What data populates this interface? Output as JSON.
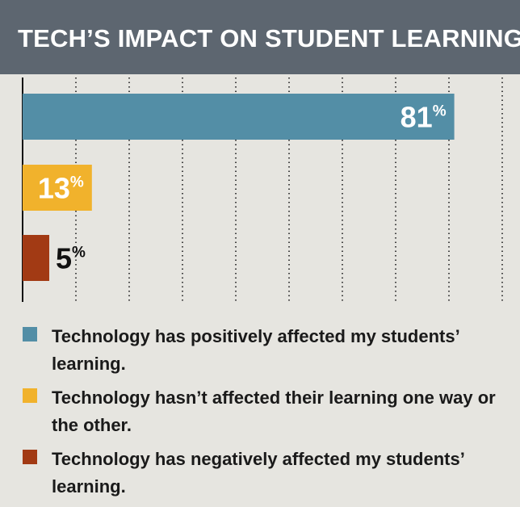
{
  "header": {
    "title": "TECH’S IMPACT ON STUDENT LEARNING",
    "background": "#5d6670"
  },
  "chart_data": {
    "type": "bar",
    "orientation": "horizontal",
    "title": "TECH’S IMPACT ON STUDENT LEARNING",
    "categories": [
      "Technology has positively affected my students’ learning.",
      "Technology hasn’t affected their learning one way or the other.",
      "Technology has negatively affected my students’ learning."
    ],
    "values": [
      81,
      13,
      5
    ],
    "value_labels": [
      "81",
      "13",
      "5"
    ],
    "unit": "%",
    "colors": [
      "#538ea6",
      "#f1b22c",
      "#a23a14"
    ],
    "label_colors": [
      "#ffffff",
      "#ffffff",
      "#111111"
    ],
    "xlim": [
      0,
      90
    ],
    "grid": true,
    "legend_position": "bottom"
  }
}
